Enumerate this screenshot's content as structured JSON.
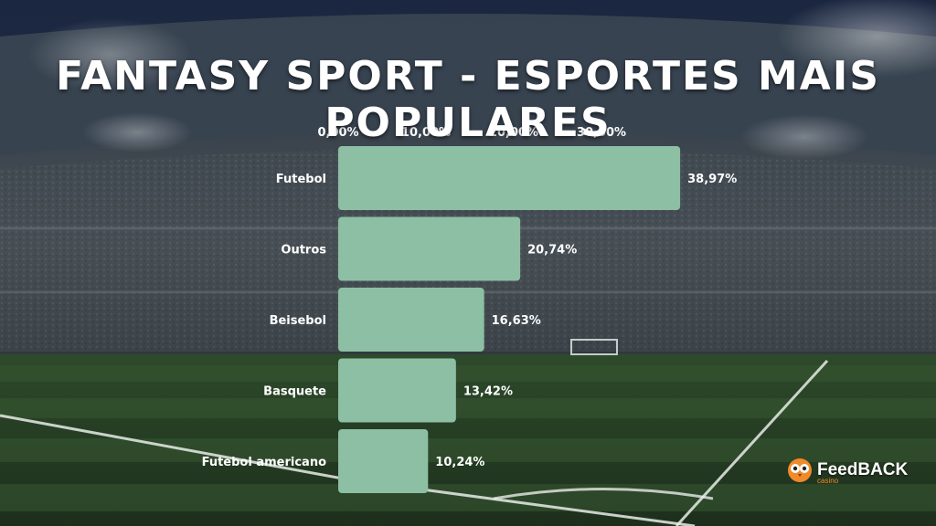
{
  "title": "FANTASY SPORT - ESPORTES MAIS POPULARES",
  "logo": {
    "name": "FeedBACK",
    "sub": "casino",
    "icon": "owl-icon"
  },
  "colors": {
    "bar": "#8dbfa5",
    "text": "#ffffff",
    "logo_accent": "#f08a2a"
  },
  "chart_data": {
    "type": "bar",
    "orientation": "horizontal",
    "categories": [
      "Futebol",
      "Outros",
      "Beisebol",
      "Basquete",
      "Futebol americano"
    ],
    "values": [
      38.97,
      20.74,
      16.63,
      13.42,
      10.24
    ],
    "value_labels": [
      "38,97%",
      "20,74%",
      "16,63%",
      "13,42%",
      "10,24%"
    ],
    "ticks": [
      0,
      10,
      20,
      30
    ],
    "tick_labels": [
      "0,00%",
      "10,00%",
      "20,00%",
      "30,00%"
    ],
    "xlim": [
      0,
      40
    ],
    "axis_position": "top",
    "grid": false,
    "legend": "none"
  }
}
